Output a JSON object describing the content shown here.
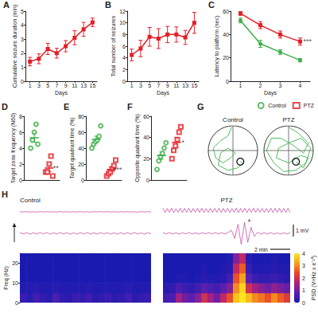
{
  "chart_data": [
    {
      "title": "A",
      "type": "line",
      "x": [
        1,
        3,
        5,
        7,
        9,
        11,
        13,
        15
      ],
      "xlabel": "Days",
      "ylabel": "Cumulative seizure duration (min)",
      "xlim": [
        0,
        16
      ],
      "xticks": [
        1,
        3,
        5,
        7,
        9,
        11,
        13,
        15
      ],
      "ylim": [
        0,
        5
      ],
      "yticks": [
        0,
        1,
        2,
        3,
        4,
        5
      ],
      "series": [
        {
          "color": "#e41e26",
          "marker": "square",
          "values": [
            1.4,
            1.6,
            2.3,
            2.0,
            2.5,
            3.1,
            3.7,
            4.2
          ],
          "errors": [
            0.3,
            0.35,
            0.4,
            0.35,
            0.4,
            0.5,
            0.5,
            0.3
          ]
        }
      ]
    },
    {
      "title": "B",
      "type": "line",
      "x": [
        1,
        3,
        5,
        7,
        9,
        11,
        13,
        15
      ],
      "xlabel": "Days",
      "ylabel": "Total number of seizures",
      "xlim": [
        0,
        16
      ],
      "xticks": [
        1,
        3,
        5,
        7,
        9,
        11,
        13,
        15
      ],
      "ylim": [
        0,
        12
      ],
      "yticks": [
        0,
        2,
        4,
        6,
        8,
        10,
        12
      ],
      "series": [
        {
          "color": "#e41e26",
          "marker": "square",
          "values": [
            4.5,
            5.6,
            7.6,
            7.3,
            8.0,
            8.0,
            7.5,
            10.0
          ],
          "errors": [
            1.0,
            1.4,
            1.6,
            1.7,
            1.4,
            1.3,
            1.2,
            1.8
          ]
        }
      ]
    },
    {
      "title": "C",
      "type": "line",
      "x": [
        1,
        2,
        3,
        4
      ],
      "xlabel": "Days",
      "ylabel": "Latency to platform (sec)",
      "xlim": [
        0.5,
        4.5
      ],
      "xticks": [
        1,
        2,
        3,
        4
      ],
      "ylim": [
        0,
        60
      ],
      "yticks": [
        0,
        20,
        40,
        60
      ],
      "annotation": "***",
      "series": [
        {
          "color": "#3dae49",
          "marker": "circle",
          "values": [
            52,
            32,
            25,
            18
          ],
          "errors": [
            2,
            3,
            2,
            1.5
          ]
        },
        {
          "color": "#e41e26",
          "marker": "square",
          "values": [
            58,
            48,
            40,
            34
          ],
          "errors": [
            1.5,
            3,
            3,
            3
          ]
        }
      ]
    },
    {
      "title": "D",
      "type": "dot",
      "ylabel": "Target zone frequency (N60)",
      "ylim": [
        0,
        8
      ],
      "yticks": [
        0,
        2,
        4,
        6,
        8
      ],
      "annotation": "**",
      "series": [
        {
          "color": "#3dae49",
          "marker": "open_circle",
          "values": [
            4,
            5,
            6,
            7,
            4.5
          ],
          "mean": 5.3,
          "sem": 0.55
        },
        {
          "color": "#e41e26",
          "marker": "open_square",
          "values": [
            1,
            1,
            2,
            3,
            0.5
          ],
          "mean": 1.5,
          "sem": 0.45
        }
      ]
    },
    {
      "title": "E",
      "type": "dot",
      "ylabel": "Target quadrant time (%)",
      "ylim": [
        0,
        80
      ],
      "yticks": [
        0,
        20,
        40,
        60,
        80
      ],
      "annotation": "***",
      "series": [
        {
          "color": "#3dae49",
          "marker": "open_circle",
          "values": [
            40,
            45,
            48,
            50,
            55,
            68
          ],
          "mean": 51,
          "sem": 4
        },
        {
          "color": "#e41e26",
          "marker": "open_square",
          "values": [
            5,
            8,
            10,
            14,
            18,
            25
          ],
          "mean": 13.3,
          "sem": 3
        }
      ]
    },
    {
      "title": "F",
      "type": "dot",
      "ylabel": "Opposite quadrant time (%)",
      "ylim": [
        0,
        60
      ],
      "yticks": [
        0,
        20,
        40,
        60
      ],
      "annotation": "*",
      "legend": "top-right",
      "series": [
        {
          "name": "Control",
          "color": "#3dae49",
          "marker": "open_circle",
          "values": [
            10,
            18,
            22,
            25,
            30,
            35
          ],
          "mean": 23,
          "sem": 3.5
        },
        {
          "name": "PTZ",
          "color": "#e41e26",
          "marker": "open_square",
          "values": [
            20,
            28,
            32,
            38,
            45,
            50
          ],
          "mean": 35.5,
          "sem": 4.5
        }
      ]
    },
    {
      "title": "G",
      "type": "track",
      "xlim": [
        -1,
        1
      ],
      "ylim": [
        -1,
        1
      ],
      "xticks": [
        0
      ],
      "yticks": [
        0
      ],
      "tick_labels": false,
      "panels": [
        {
          "title": "Control",
          "color": "#39b54a",
          "platform": {
            "x": 0.3,
            "y": -0.45,
            "r": 0.14
          },
          "path": [
            [
              -0.05,
              0.95
            ],
            [
              -0.2,
              0.6
            ],
            [
              -0.5,
              0.4
            ],
            [
              -0.8,
              0.1
            ],
            [
              -0.7,
              -0.3
            ],
            [
              -0.4,
              -0.5
            ],
            [
              -0.1,
              -0.3
            ],
            [
              0.1,
              -0.1
            ],
            [
              -0.2,
              0.1
            ],
            [
              -0.5,
              -0.1
            ],
            [
              -0.6,
              -0.6
            ],
            [
              -0.2,
              -0.8
            ],
            [
              0.2,
              -0.7
            ],
            [
              0.4,
              -0.5
            ],
            [
              0.3,
              -0.45
            ]
          ]
        },
        {
          "title": "PTZ",
          "color": "#39b54a",
          "platform": {
            "x": 0.3,
            "y": -0.45,
            "r": 0.14
          },
          "path": [
            [
              0.0,
              0.95
            ],
            [
              0.4,
              0.7
            ],
            [
              0.8,
              0.3
            ],
            [
              0.6,
              -0.1
            ],
            [
              0.2,
              0.2
            ],
            [
              -0.3,
              0.5
            ],
            [
              -0.7,
              0.5
            ],
            [
              -0.9,
              0.0
            ],
            [
              -0.6,
              -0.5
            ],
            [
              -0.2,
              -0.85
            ],
            [
              0.3,
              -0.8
            ],
            [
              0.7,
              -0.5
            ],
            [
              0.9,
              0.1
            ],
            [
              0.5,
              0.5
            ],
            [
              0.0,
              0.3
            ],
            [
              -0.4,
              0.1
            ],
            [
              -0.5,
              -0.3
            ],
            [
              0.0,
              -0.5
            ],
            [
              0.5,
              -0.2
            ],
            [
              0.8,
              -0.3
            ],
            [
              0.6,
              -0.7
            ],
            [
              0.3,
              -0.45
            ]
          ]
        }
      ]
    },
    {
      "title": "H",
      "type": "eeg",
      "ylabel": "Freq (Hz)",
      "ylim": [
        0,
        25
      ],
      "yticks": [
        0,
        10,
        20
      ],
      "tick_labels": "y",
      "freq_bins": [
        0,
        5,
        10,
        15,
        20,
        25
      ],
      "trace_ylim": [
        -1.2,
        1.2
      ],
      "color": "#c2379a",
      "scale_bars": [
        "1 mV",
        "2 min"
      ],
      "colorbar": {
        "label": "PSD (V²/Hz x e⁻¹⁰)",
        "range": [
          0,
          4
        ],
        "ticks": [
          0,
          1,
          2,
          3,
          4
        ]
      },
      "panels": [
        {
          "title": "Control",
          "traces": [
            [
              0.04,
              -0.03,
              0.05,
              -0.04,
              0.03,
              -0.05,
              0.04,
              -0.02,
              0.05,
              -0.04,
              0.03,
              -0.03,
              0.06,
              -0.04,
              0.02,
              -0.05,
              0.04,
              -0.03,
              0.05,
              -0.04,
              0.03,
              -0.05,
              0.04,
              -0.03,
              0.05,
              -0.02,
              0.04,
              -0.04,
              0.03,
              -0.05,
              0.05,
              -0.03,
              0.04,
              -0.04,
              0.03,
              -0.05,
              0.04,
              -0.03,
              0.05,
              -0.04
            ],
            [
              0.08,
              -0.06,
              0.07,
              -0.09,
              0.06,
              -0.07,
              0.09,
              -0.05,
              0.08,
              -0.08,
              0.06,
              -0.07,
              0.08,
              -0.06,
              0.07,
              -0.09,
              0.05,
              -0.07,
              0.08,
              -0.06,
              0.09,
              -0.08,
              0.06,
              -0.07,
              0.08,
              -0.05,
              0.07,
              -0.08,
              0.06,
              -0.09,
              0.08,
              -0.06,
              0.07,
              -0.07,
              0.09,
              -0.06,
              0.05,
              -0.08,
              0.07,
              -0.06
            ]
          ],
          "psd": [
            [
              0.4,
              0.2,
              0.5,
              0.3,
              0.2,
              0.6,
              0.3,
              0.2,
              0.4,
              0.3,
              0.5,
              0.2,
              0.3,
              0.4,
              0.2,
              0.3,
              0.5,
              0.2,
              0.3,
              0.4
            ],
            [
              0.1,
              0.1,
              0.2,
              0.1,
              0.1,
              0.2,
              0.1,
              0.1,
              0.1,
              0.1,
              0.2,
              0.1,
              0.1,
              0.1,
              0.1,
              0.1,
              0.2,
              0.1,
              0.1,
              0.1
            ],
            [
              0,
              0,
              0,
              0,
              0,
              0,
              0,
              0,
              0,
              0,
              0,
              0,
              0,
              0,
              0,
              0,
              0,
              0,
              0,
              0
            ],
            [
              0,
              0,
              0,
              0,
              0,
              0,
              0,
              0,
              0,
              0,
              0,
              0,
              0,
              0,
              0,
              0,
              0,
              0,
              0,
              0
            ],
            [
              0,
              0,
              0,
              0,
              0,
              0,
              0,
              0,
              0,
              0,
              0,
              0,
              0,
              0,
              0,
              0,
              0,
              0,
              0,
              0
            ]
          ]
        },
        {
          "title": "PTZ",
          "annotation": "*",
          "traces": [
            [
              0.9,
              -0.15,
              0.85,
              -0.1,
              0.95,
              -0.2,
              0.8,
              -0.1,
              0.9,
              -0.15,
              0.88,
              -0.12,
              0.92,
              -0.18,
              0.85,
              -0.1,
              0.9,
              -0.15,
              0.95,
              -0.2,
              0.82,
              -0.1,
              0.9,
              -0.14,
              0.87,
              -0.12,
              0.93,
              -0.16,
              0.86,
              -0.1,
              0.9,
              -0.15,
              0.84,
              -0.12,
              0.95,
              -0.18,
              0.88,
              -0.1,
              0.9,
              -0.16,
              0.85,
              -0.12,
              0.92,
              -0.15,
              0.87,
              -0.1,
              0.9,
              -0.18,
              0.83,
              -0.12,
              0.94,
              -0.15,
              0.88,
              -0.1,
              0.9,
              -0.16,
              0.86,
              -0.12,
              0.92,
              -0.15
            ],
            [
              0.06,
              -0.05,
              0.07,
              -0.06,
              0.05,
              -0.07,
              0.06,
              -0.05,
              0.08,
              -0.06,
              0.05,
              -0.07,
              0.06,
              -0.05,
              0.07,
              -0.06,
              0.08,
              -0.05,
              0.06,
              -0.07,
              0.1,
              0.3,
              -0.5,
              0.9,
              -1.1,
              1.1,
              -0.9,
              0.6,
              -0.3,
              0.12,
              -0.08,
              0.06,
              -0.05,
              0.07,
              -0.06,
              0.05,
              -0.07,
              0.06,
              -0.05,
              0.06
            ]
          ],
          "psd": [
            [
              0.5,
              0.6,
              1.5,
              1.0,
              0.8,
              1.2,
              2.0,
              1.5,
              1.0,
              1.8,
              2.5,
              3.6,
              4.0,
              3.5,
              3.0,
              2.8,
              2.5,
              3.0,
              2.6,
              2.2
            ],
            [
              0.2,
              0.3,
              0.6,
              0.4,
              0.3,
              0.5,
              0.8,
              0.6,
              0.5,
              0.8,
              1.2,
              3.0,
              3.8,
              2.0,
              1.5,
              1.2,
              1.0,
              1.3,
              1.1,
              0.9
            ],
            [
              0,
              0,
              0.1,
              0.1,
              0,
              0.1,
              0.2,
              0.1,
              0.1,
              0.2,
              0.5,
              2.5,
              3.2,
              0.8,
              0.4,
              0.3,
              0.3,
              0.4,
              0.3,
              0.2
            ],
            [
              0,
              0,
              0,
              0,
              0,
              0,
              0.1,
              0,
              0,
              0.1,
              0.2,
              1.8,
              2.6,
              0.4,
              0.1,
              0.1,
              0.1,
              0.2,
              0.1,
              0.1
            ],
            [
              0,
              0,
              0,
              0,
              0,
              0,
              0,
              0,
              0,
              0,
              0.1,
              1.2,
              1.8,
              0.2,
              0,
              0,
              0,
              0.1,
              0,
              0
            ]
          ]
        }
      ]
    }
  ]
}
